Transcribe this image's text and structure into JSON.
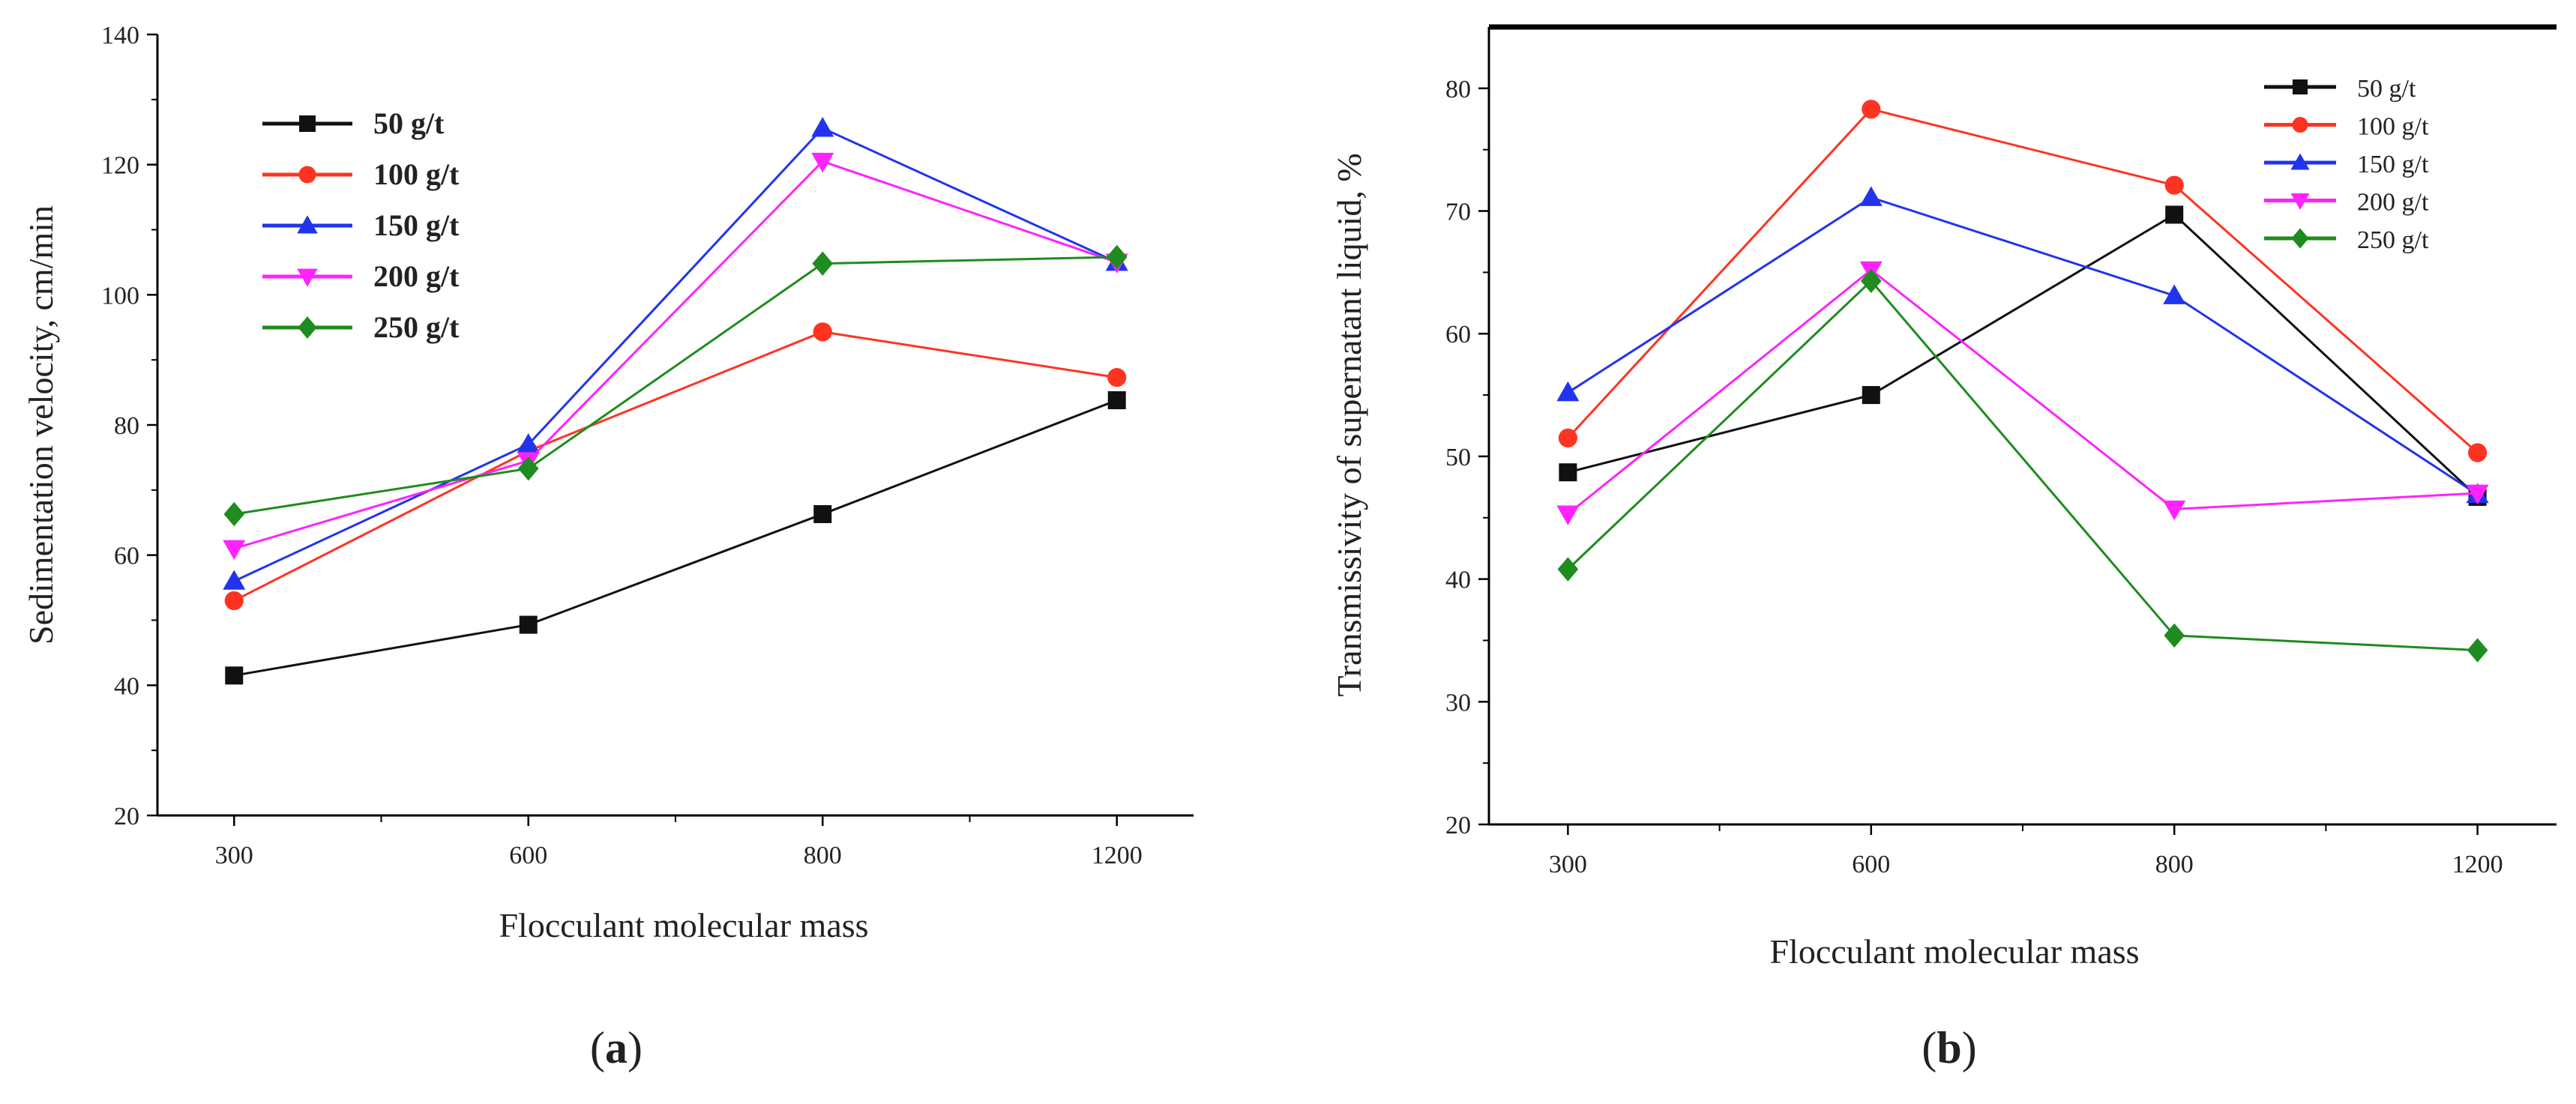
{
  "chart_data": [
    {
      "type": "line",
      "panel": "a",
      "panel_label": "(a)",
      "categories": [
        "300",
        "600",
        "800",
        "1200"
      ],
      "xlabel": "Flocculant molecular mass",
      "ylabel": "Sedimentation velocity, cm/min",
      "ylim": [
        20,
        140
      ],
      "yticks": [
        "20",
        "40",
        "60",
        "80",
        "100",
        "120",
        "140"
      ],
      "legend_position": "top-left",
      "series": [
        {
          "name": "50 g/t",
          "color": "#111111",
          "marker": "square",
          "values": [
            41.5,
            49.3,
            66.3,
            83.8
          ]
        },
        {
          "name": "100 g/t",
          "color": "#ff3322",
          "marker": "circle",
          "values": [
            53.0,
            76.0,
            94.3,
            87.3
          ]
        },
        {
          "name": "150 g/t",
          "color": "#2233ee",
          "marker": "triangle-up",
          "values": [
            56.0,
            77.0,
            125.6,
            105.0
          ]
        },
        {
          "name": "200 g/t",
          "color": "#ff22ff",
          "marker": "triangle-down",
          "values": [
            61.0,
            74.5,
            120.5,
            105.0
          ]
        },
        {
          "name": "250 g/t",
          "color": "#1e8c1e",
          "marker": "diamond",
          "values": [
            66.3,
            73.3,
            104.8,
            105.8
          ]
        }
      ]
    },
    {
      "type": "line",
      "panel": "b",
      "panel_label": "(b)",
      "categories": [
        "300",
        "600",
        "800",
        "1200"
      ],
      "xlabel": "Flocculant molecular mass",
      "ylabel": "Transmissivity of supernatant liquid, %",
      "ylim": [
        20,
        85
      ],
      "yticks": [
        "20",
        "30",
        "40",
        "50",
        "60",
        "70",
        "80"
      ],
      "legend_position": "top-right",
      "series": [
        {
          "name": "50 g/t",
          "color": "#111111",
          "marker": "square",
          "values": [
            48.7,
            55.0,
            69.7,
            46.7
          ]
        },
        {
          "name": "100 g/t",
          "color": "#ff3322",
          "marker": "circle",
          "values": [
            51.5,
            78.3,
            72.1,
            50.3
          ]
        },
        {
          "name": "150 g/t",
          "color": "#2233ee",
          "marker": "triangle-up",
          "values": [
            55.2,
            71.1,
            63.1,
            46.9
          ]
        },
        {
          "name": "200 g/t",
          "color": "#ff22ff",
          "marker": "triangle-down",
          "values": [
            45.3,
            65.2,
            45.7,
            47.0
          ]
        },
        {
          "name": "250 g/t",
          "color": "#1e8c1e",
          "marker": "diamond",
          "values": [
            40.8,
            64.3,
            35.4,
            34.2
          ]
        }
      ]
    }
  ]
}
